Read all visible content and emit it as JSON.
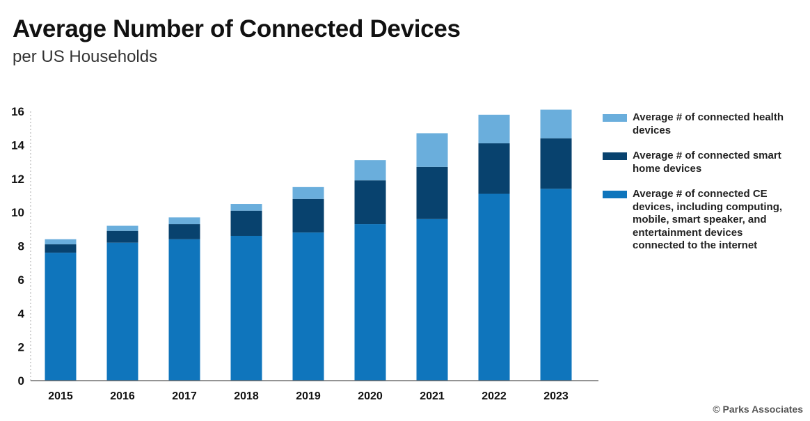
{
  "chart_data": {
    "type": "bar",
    "stacked": true,
    "title": "Average Number of Connected Devices",
    "subtitle": "per US Households",
    "xlabel": "",
    "ylabel": "",
    "ylim": [
      0,
      16
    ],
    "yticks": [
      0,
      2,
      4,
      6,
      8,
      10,
      12,
      14,
      16
    ],
    "categories": [
      "2015",
      "2016",
      "2017",
      "2018",
      "2019",
      "2020",
      "2021",
      "2022",
      "2023"
    ],
    "series": [
      {
        "name": "Average # of connected CE devices, including computing, mobile, smart speaker, and entertainment devices connected to the internet",
        "color": "#0f75bc",
        "values": [
          7.6,
          8.2,
          8.4,
          8.6,
          8.8,
          9.3,
          9.6,
          11.1,
          11.4
        ]
      },
      {
        "name": "Average # of connected smart home devices",
        "color": "#08426e",
        "values": [
          0.5,
          0.7,
          0.9,
          1.5,
          2.0,
          2.6,
          3.1,
          3.0,
          3.0
        ]
      },
      {
        "name": "Average # of connected health devices",
        "color": "#6aaedc",
        "values": [
          0.3,
          0.3,
          0.4,
          0.4,
          0.7,
          1.2,
          2.0,
          1.7,
          1.7
        ]
      }
    ],
    "legend_position": "right",
    "grid": false
  },
  "credit": "© Parks Associates"
}
